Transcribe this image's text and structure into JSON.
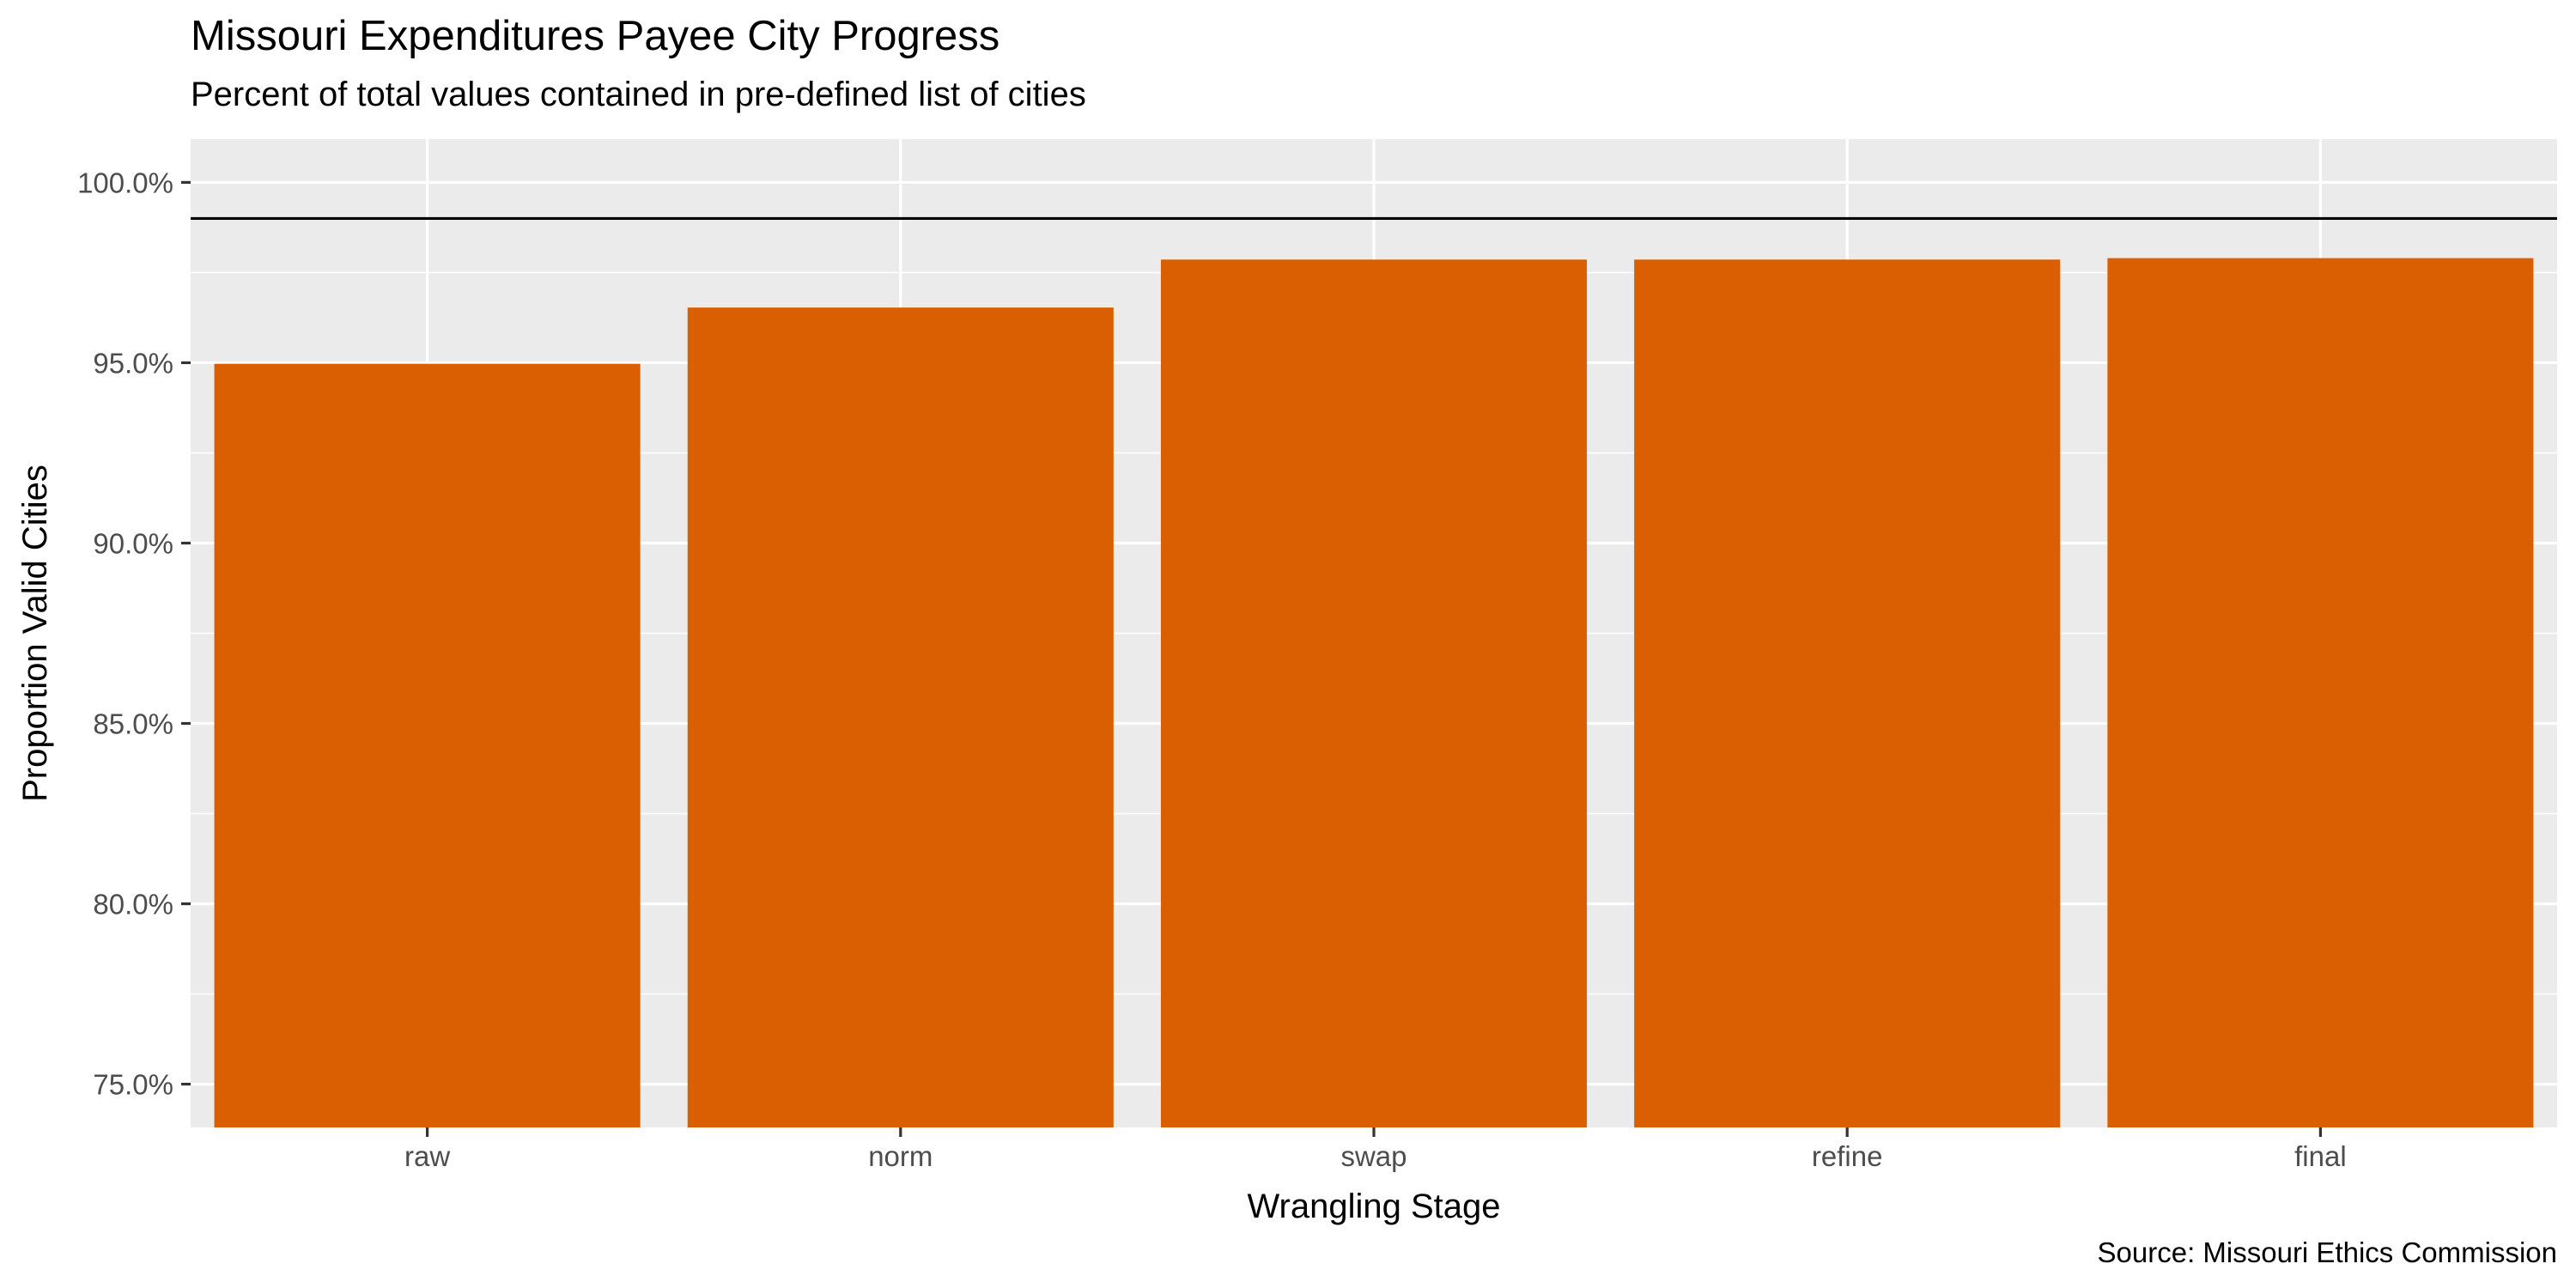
{
  "chart_data": {
    "type": "bar",
    "title": "Missouri Expenditures Payee City Progress",
    "subtitle": "Percent of total values contained in pre-defined list of cities",
    "caption": "Source: Missouri Ethics Commission",
    "xlabel": "Wrangling Stage",
    "ylabel": "Proportion Valid Cities",
    "categories": [
      "raw",
      "norm",
      "swap",
      "refine",
      "final"
    ],
    "values": [
      0.9497,
      0.9653,
      0.9786,
      0.9786,
      0.979
    ],
    "ylim": [
      0.738,
      1.012
    ],
    "yticks": [
      0.75,
      0.8,
      0.85,
      0.9,
      0.95,
      1.0
    ],
    "ytick_labels": [
      "75.0%",
      "80.0%",
      "85.0%",
      "90.0%",
      "95.0%",
      "100.0%"
    ],
    "reference_line": 0.99,
    "bar_color": "#D95F02",
    "panel_color": "#EBEBEB",
    "grid": true,
    "legend": "none"
  }
}
